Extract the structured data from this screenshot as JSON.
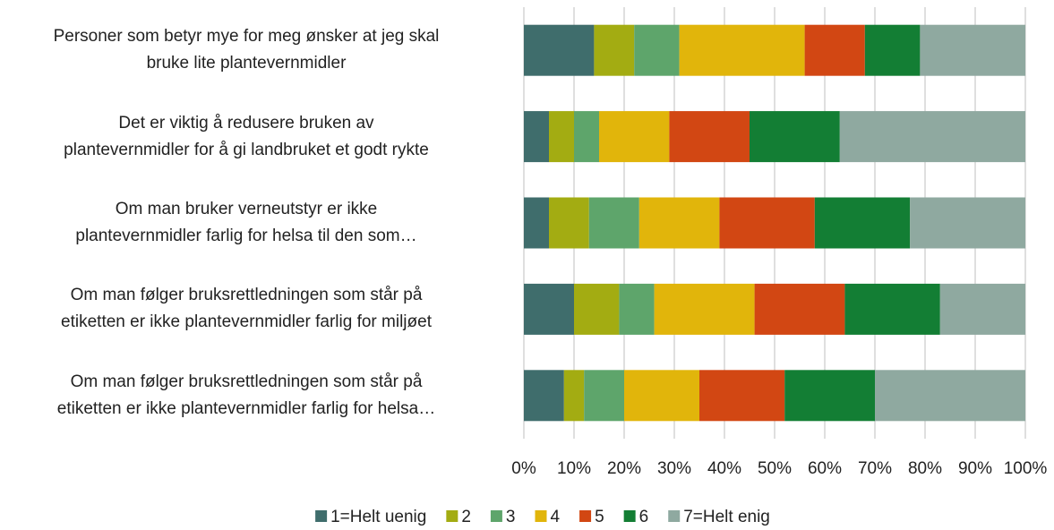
{
  "chart_data": {
    "type": "stacked-barh",
    "categories": [
      "Personer som betyr mye for meg ønsker at jeg skal\nbruke lite plantevernmidler",
      "Det er viktig å redusere bruken av\nplantevernmidler for å gi landbruket et godt rykte",
      "Om man bruker verneutstyr er ikke\nplantevernmidler farlig for helsa til den som…",
      "Om man følger bruksrettledningen som står på\netiketten er ikke plantevernmidler farlig for miljøet",
      "Om man følger bruksrettledningen som står på\netiketten er ikke plantevernmidler farlig for helsa…"
    ],
    "series": [
      {
        "name": "1=Helt uenig",
        "color": "#3f6d6c",
        "values": [
          14,
          5,
          5,
          10,
          8
        ]
      },
      {
        "name": "2",
        "color": "#a3ac12",
        "values": [
          8,
          5,
          8,
          9,
          4
        ]
      },
      {
        "name": "3",
        "color": "#5ea56b",
        "values": [
          9,
          5,
          10,
          7,
          8
        ]
      },
      {
        "name": "4",
        "color": "#e1b50b",
        "values": [
          25,
          14,
          16,
          20,
          15
        ]
      },
      {
        "name": "5",
        "color": "#d24713",
        "values": [
          12,
          16,
          19,
          18,
          17
        ]
      },
      {
        "name": "6",
        "color": "#137e34",
        "values": [
          11,
          18,
          19,
          19,
          18
        ]
      },
      {
        "name": "7=Helt enig",
        "color": "#8fa9a0",
        "values": [
          21,
          37,
          23,
          17,
          30
        ]
      }
    ],
    "xlim": [
      0,
      100
    ],
    "xticks": [
      {
        "value": 0,
        "label": "0%"
      },
      {
        "value": 10,
        "label": "10%"
      },
      {
        "value": 20,
        "label": "20%"
      },
      {
        "value": 30,
        "label": "30%"
      },
      {
        "value": 40,
        "label": "40%"
      },
      {
        "value": 50,
        "label": "50%"
      },
      {
        "value": 60,
        "label": "60%"
      },
      {
        "value": 70,
        "label": "70%"
      },
      {
        "value": 80,
        "label": "80%"
      },
      {
        "value": 90,
        "label": "90%"
      },
      {
        "value": 100,
        "label": "100%"
      }
    ],
    "grid": true,
    "legend": "bottom"
  }
}
